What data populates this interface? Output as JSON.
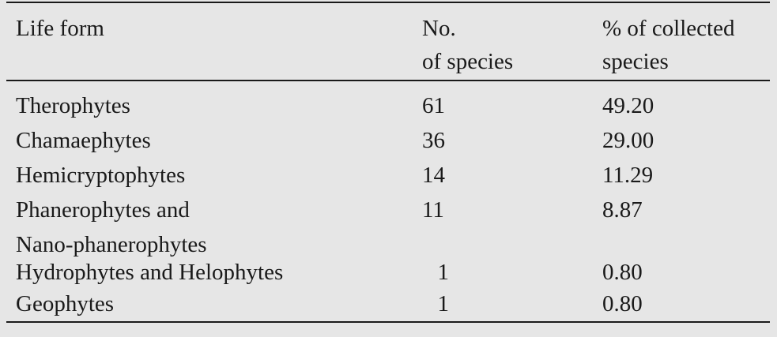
{
  "table": {
    "headers": {
      "life_form": "Life form",
      "no_species_line1": "No.",
      "no_species_line2": "of species",
      "percent_line1": "% of collected",
      "percent_line2": "species"
    },
    "rows": [
      {
        "life_form": "Therophytes",
        "life_form_cont": "",
        "count": "61",
        "percent": "49.20"
      },
      {
        "life_form": "Chamaephytes",
        "life_form_cont": "",
        "count": "36",
        "percent": "29.00"
      },
      {
        "life_form": "Hemicryptophytes",
        "life_form_cont": "",
        "count": "14",
        "percent": "11.29"
      },
      {
        "life_form": "Phanerophytes and",
        "life_form_cont": "Nano-phanerophytes",
        "count": "11",
        "percent": "8.87"
      },
      {
        "life_form": "Hydrophytes and Helophytes",
        "life_form_cont": "",
        "count": "1",
        "percent": "0.80"
      },
      {
        "life_form": "Geophytes",
        "life_form_cont": "",
        "count": "1",
        "percent": "0.80"
      }
    ]
  }
}
